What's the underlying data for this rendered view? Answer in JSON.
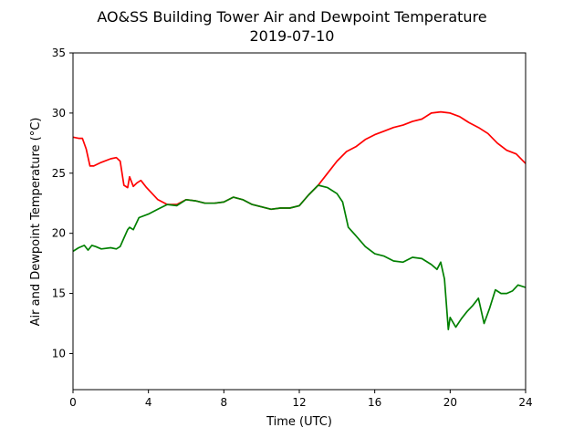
{
  "chart_data": {
    "type": "line",
    "title": [
      "AO&SS Building Tower Air and Dewpoint Temperature",
      "2019-07-10"
    ],
    "xlabel": "Time (UTC)",
    "ylabel": "Air and Dewpoint Temperature (°C)",
    "xlim": [
      0,
      24
    ],
    "ylim": [
      7,
      35
    ],
    "xticks": [
      0,
      4,
      8,
      12,
      16,
      20,
      24
    ],
    "xtick_labels": [
      "0",
      "4",
      "8",
      "12",
      "16",
      "20",
      "24"
    ],
    "yticks": [
      10,
      15,
      20,
      25,
      30,
      35
    ],
    "ytick_labels": [
      "10",
      "15",
      "20",
      "25",
      "30",
      "35"
    ],
    "grid": false,
    "series": [
      {
        "color": "#ff0000",
        "x": [
          0,
          0.3,
          0.5,
          0.7,
          0.9,
          1.1,
          1.5,
          2.0,
          2.3,
          2.5,
          2.7,
          2.9,
          3.0,
          3.2,
          3.4,
          3.6,
          3.9,
          4.2,
          4.5,
          5.0,
          5.5,
          6.0,
          6.5,
          7.0,
          7.5,
          8.0,
          8.5,
          9.0,
          9.5,
          10.0,
          10.5,
          11.0,
          11.5,
          12.0,
          12.5,
          13.0,
          13.5,
          14.0,
          14.5,
          15.0,
          15.5,
          16.0,
          16.5,
          17.0,
          17.5,
          18.0,
          18.5,
          19.0,
          19.5,
          20.0,
          20.5,
          21.0,
          21.5,
          22.0,
          22.5,
          23.0,
          23.5,
          24.0
        ],
        "y": [
          28.0,
          27.9,
          27.9,
          27.0,
          25.6,
          25.6,
          25.9,
          26.2,
          26.3,
          26.0,
          24.0,
          23.8,
          24.7,
          23.9,
          24.2,
          24.4,
          23.8,
          23.3,
          22.8,
          22.4,
          22.4,
          22.8,
          22.7,
          22.5,
          22.5,
          22.6,
          23.0,
          22.8,
          22.4,
          22.2,
          22.0,
          22.1,
          22.1,
          22.3,
          23.2,
          24.0,
          25.0,
          26.0,
          26.8,
          27.2,
          27.8,
          28.2,
          28.5,
          28.8,
          29.0,
          29.3,
          29.5,
          30.0,
          30.1,
          30.0,
          29.7,
          29.2,
          28.8,
          28.3,
          27.5,
          26.9,
          26.6,
          25.8
        ]
      },
      {
        "color": "#008000",
        "x": [
          0,
          0.3,
          0.6,
          0.8,
          1.0,
          1.2,
          1.5,
          2.0,
          2.3,
          2.5,
          2.7,
          2.9,
          3.0,
          3.2,
          3.5,
          4.0,
          4.5,
          5.0,
          5.5,
          6.0,
          6.5,
          7.0,
          7.5,
          8.0,
          8.5,
          9.0,
          9.5,
          10.0,
          10.5,
          11.0,
          11.5,
          12.0,
          12.5,
          13.0,
          13.5,
          14.0,
          14.3,
          14.6,
          15.0,
          15.5,
          16.0,
          16.5,
          17.0,
          17.5,
          18.0,
          18.5,
          19.0,
          19.3,
          19.5,
          19.7,
          19.9,
          20.0,
          20.3,
          20.6,
          20.9,
          21.2,
          21.5,
          21.8,
          22.1,
          22.4,
          22.7,
          23.0,
          23.3,
          23.6,
          24.0
        ],
        "y": [
          18.5,
          18.8,
          19.0,
          18.6,
          19.0,
          18.9,
          18.7,
          18.8,
          18.7,
          18.9,
          19.6,
          20.3,
          20.5,
          20.3,
          21.3,
          21.6,
          22.0,
          22.4,
          22.3,
          22.8,
          22.7,
          22.5,
          22.5,
          22.6,
          23.0,
          22.8,
          22.4,
          22.2,
          22.0,
          22.1,
          22.1,
          22.3,
          23.2,
          24.0,
          23.8,
          23.3,
          22.6,
          20.5,
          19.8,
          18.9,
          18.3,
          18.1,
          17.7,
          17.6,
          18.0,
          17.9,
          17.4,
          17.0,
          17.6,
          16.2,
          12.0,
          13.0,
          12.2,
          12.9,
          13.5,
          14.0,
          14.6,
          12.5,
          13.8,
          15.3,
          15.0,
          15.0,
          15.2,
          15.7,
          15.5
        ]
      }
    ]
  }
}
